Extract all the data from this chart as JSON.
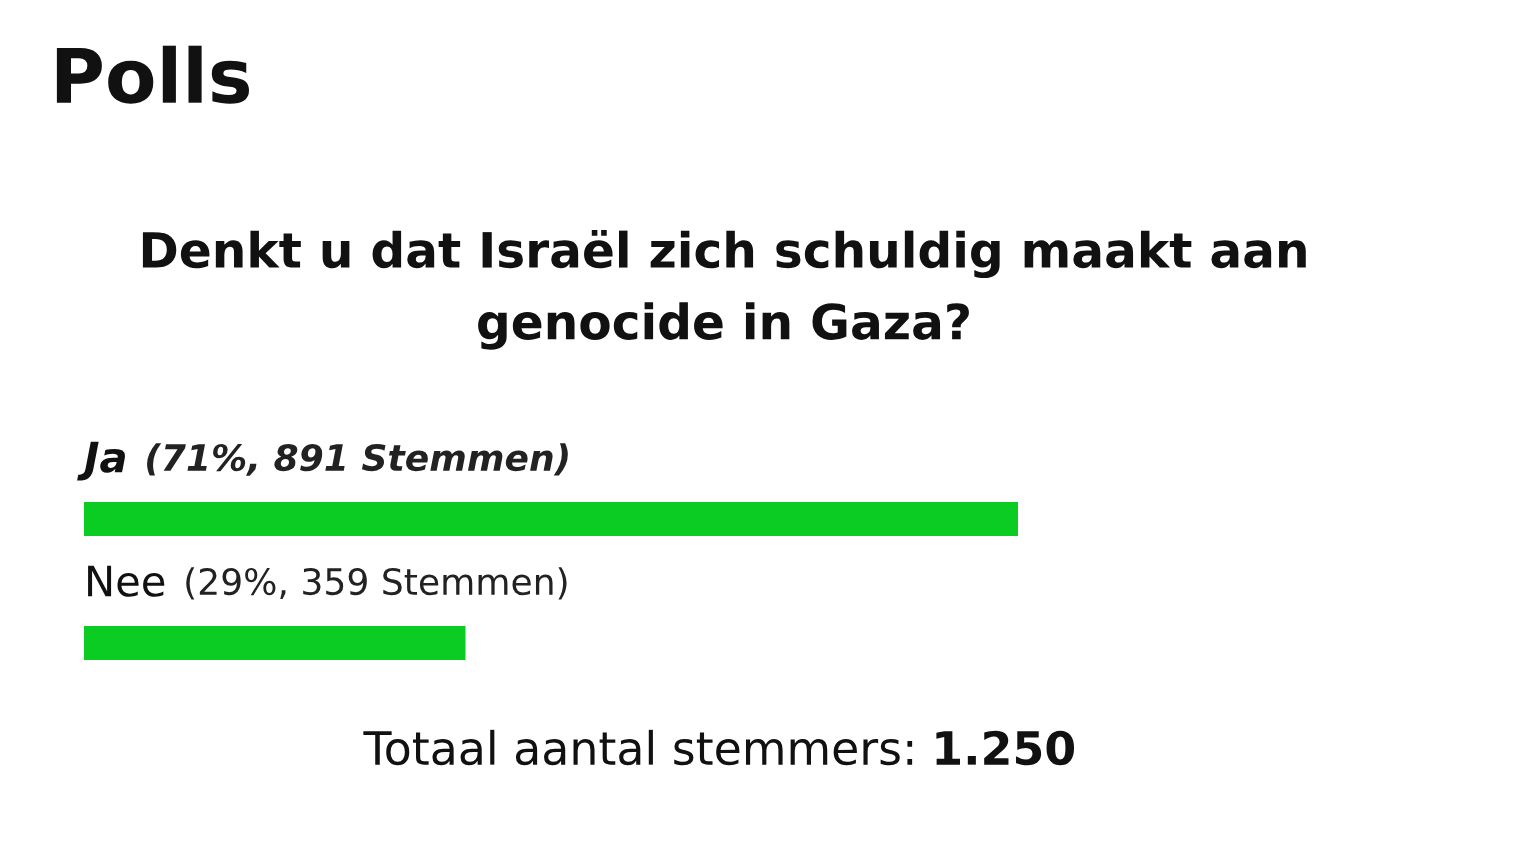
{
  "chart_data": {
    "type": "bar",
    "orientation": "horizontal",
    "title": "Polls",
    "subtitle": "Denkt u dat Israël zich schuldig maakt aan genocide in Gaza?",
    "categories": [
      "Ja",
      "Nee"
    ],
    "values": [
      71,
      29
    ],
    "value_labels": [
      "(71%, 891 Stemmen)",
      "(29%, 359 Stemmen)"
    ],
    "color": "#0acc22",
    "tick_labels": false,
    "annotations": [
      "Totaal aantal stemmers: 1.250"
    ]
  }
}
